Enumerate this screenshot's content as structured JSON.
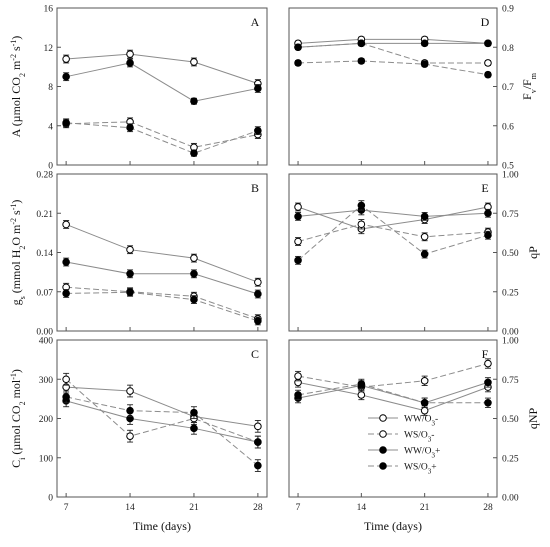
{
  "chart_data": [
    {
      "id": "A",
      "type": "line",
      "panel_label": "A",
      "ylabel": "A (µmol CO₂ m⁻² s⁻¹)",
      "ylabel_parts": [
        [
          "A (µmol CO",
          ""
        ],
        [
          "2",
          "sub"
        ],
        [
          " m",
          ""
        ],
        [
          "-2",
          "sup"
        ],
        [
          " s",
          ""
        ],
        [
          "-1",
          "sup"
        ],
        [
          ")",
          ""
        ]
      ],
      "xlabel": "",
      "x": [
        7,
        14,
        21,
        28
      ],
      "xlim": [
        6,
        29
      ],
      "ylim": [
        0,
        16
      ],
      "yticks": [
        "0",
        "4",
        "8",
        "12",
        "16"
      ],
      "series": [
        {
          "name": "WW/O3-",
          "values": [
            10.8,
            11.3,
            10.5,
            8.3
          ],
          "err": [
            0.4,
            0.4,
            0.4,
            0.4
          ]
        },
        {
          "name": "WS/O3-",
          "values": [
            4.2,
            4.4,
            1.8,
            3.1
          ],
          "err": [
            0.4,
            0.4,
            0.4,
            0.4
          ]
        },
        {
          "name": "WW/O3+",
          "values": [
            9.0,
            10.4,
            6.5,
            7.8
          ],
          "err": [
            0.4,
            0.4,
            0.3,
            0.4
          ]
        },
        {
          "name": "WS/O3+",
          "values": [
            4.3,
            3.8,
            1.2,
            3.5
          ],
          "err": [
            0.4,
            0.4,
            0.3,
            0.4
          ]
        }
      ]
    },
    {
      "id": "D",
      "type": "line",
      "panel_label": "D",
      "ylabel": "Fv/Fm",
      "ylabel_parts": [
        [
          "F",
          ""
        ],
        [
          "v",
          "sub"
        ],
        [
          "/F",
          ""
        ],
        [
          "m",
          "sub"
        ]
      ],
      "xlabel": "",
      "x": [
        7,
        14,
        21,
        28
      ],
      "xlim": [
        6,
        29
      ],
      "ylim": [
        0.5,
        0.9
      ],
      "yticks": [
        "0.5",
        "0.6",
        "0.7",
        "0.8",
        "0.9"
      ],
      "series": [
        {
          "name": "WW/O3-",
          "values": [
            0.81,
            0.82,
            0.82,
            0.81
          ],
          "err": [
            0.006,
            0.006,
            0.006,
            0.006
          ]
        },
        {
          "name": "WS/O3-",
          "values": [
            0.8,
            0.81,
            0.76,
            0.76
          ],
          "err": [
            0.006,
            0.006,
            0.006,
            0.006
          ]
        },
        {
          "name": "WW/O3+",
          "values": [
            0.8,
            0.81,
            0.81,
            0.81
          ],
          "err": [
            0.006,
            0.006,
            0.006,
            0.006
          ]
        },
        {
          "name": "WS/O3+",
          "values": [
            0.76,
            0.765,
            0.757,
            0.73
          ],
          "err": [
            0.006,
            0.006,
            0.006,
            0.006
          ]
        }
      ]
    },
    {
      "id": "B",
      "type": "line",
      "panel_label": "B",
      "ylabel": "gs (mmol H₂O m⁻² s⁻¹)",
      "ylabel_parts": [
        [
          "g",
          ""
        ],
        [
          "s",
          "sub"
        ],
        [
          " (mmol H",
          ""
        ],
        [
          "2",
          "sub"
        ],
        [
          "O m",
          ""
        ],
        [
          "-2",
          "sup"
        ],
        [
          " s",
          ""
        ],
        [
          "-1",
          "sup"
        ],
        [
          ")",
          ""
        ]
      ],
      "xlabel": "",
      "x": [
        7,
        14,
        21,
        28
      ],
      "xlim": [
        6,
        29
      ],
      "ylim": [
        0,
        0.28
      ],
      "yticks": [
        "0.00",
        "0.07",
        "0.14",
        "0.21",
        "0.28"
      ],
      "series": [
        {
          "name": "WW/O3-",
          "values": [
            0.19,
            0.145,
            0.13,
            0.087
          ],
          "err": [
            0.007,
            0.007,
            0.007,
            0.007
          ]
        },
        {
          "name": "WS/O3-",
          "values": [
            0.078,
            0.07,
            0.062,
            0.022
          ],
          "err": [
            0.007,
            0.007,
            0.007,
            0.007
          ]
        },
        {
          "name": "WW/O3+",
          "values": [
            0.123,
            0.102,
            0.102,
            0.066
          ],
          "err": [
            0.007,
            0.007,
            0.007,
            0.007
          ]
        },
        {
          "name": "WS/O3+",
          "values": [
            0.067,
            0.069,
            0.056,
            0.018
          ],
          "err": [
            0.007,
            0.007,
            0.007,
            0.007
          ]
        }
      ]
    },
    {
      "id": "E",
      "type": "line",
      "panel_label": "E",
      "ylabel": "qP",
      "ylabel_parts": [
        [
          "qP",
          ""
        ]
      ],
      "xlabel": "",
      "x": [
        7,
        14,
        21,
        28
      ],
      "xlim": [
        6,
        29
      ],
      "ylim": [
        0,
        1
      ],
      "yticks": [
        "0.00",
        "0.25",
        "0.50",
        "0.75",
        "1.00"
      ],
      "series": [
        {
          "name": "WW/O3-",
          "values": [
            0.79,
            0.65,
            0.71,
            0.79
          ],
          "err": [
            0.025,
            0.03,
            0.025,
            0.025
          ]
        },
        {
          "name": "WS/O3-",
          "values": [
            0.57,
            0.68,
            0.6,
            0.63
          ],
          "err": [
            0.025,
            0.03,
            0.025,
            0.025
          ]
        },
        {
          "name": "WW/O3+",
          "values": [
            0.73,
            0.77,
            0.73,
            0.75
          ],
          "err": [
            0.025,
            0.03,
            0.025,
            0.025
          ]
        },
        {
          "name": "WS/O3+",
          "values": [
            0.45,
            0.8,
            0.49,
            0.61
          ],
          "err": [
            0.025,
            0.03,
            0.025,
            0.025
          ]
        }
      ]
    },
    {
      "id": "C",
      "type": "line",
      "panel_label": "C",
      "ylabel": "Ci (µmol CO₂ mol⁻¹)",
      "ylabel_parts": [
        [
          "C",
          ""
        ],
        [
          "i",
          "sub"
        ],
        [
          " (µmol CO",
          ""
        ],
        [
          "2",
          "sub"
        ],
        [
          " mol",
          ""
        ],
        [
          "-1",
          "sup"
        ],
        [
          ")",
          ""
        ]
      ],
      "xlabel": "Time (days)",
      "x": [
        7,
        14,
        21,
        28
      ],
      "xlim": [
        6,
        29
      ],
      "ylim": [
        0,
        400
      ],
      "yticks": [
        "0",
        "100",
        "200",
        "300",
        "400"
      ],
      "xticks": [
        "7",
        "14",
        "21",
        "28"
      ],
      "series": [
        {
          "name": "WW/O3-",
          "values": [
            280,
            270,
            205,
            180
          ],
          "err": [
            15,
            15,
            15,
            15
          ]
        },
        {
          "name": "WS/O3-",
          "values": [
            300,
            155,
            200,
            140
          ],
          "err": [
            15,
            15,
            15,
            15
          ]
        },
        {
          "name": "WW/O3+",
          "values": [
            245,
            200,
            175,
            140
          ],
          "err": [
            15,
            15,
            15,
            15
          ]
        },
        {
          "name": "WS/O3+",
          "values": [
            255,
            220,
            215,
            80
          ],
          "err": [
            15,
            15,
            15,
            15
          ]
        }
      ]
    },
    {
      "id": "F",
      "type": "line",
      "panel_label": "F",
      "ylabel": "qNP",
      "ylabel_parts": [
        [
          "qNP",
          ""
        ]
      ],
      "xlabel": "Time (days)",
      "x": [
        7,
        14,
        21,
        28
      ],
      "xlim": [
        6,
        29
      ],
      "ylim": [
        0,
        1
      ],
      "yticks": [
        "0.00",
        "0.25",
        "0.50",
        "0.75",
        "1.00"
      ],
      "xticks": [
        "7",
        "14",
        "21",
        "28"
      ],
      "series": [
        {
          "name": "WW/O3-",
          "values": [
            0.73,
            0.65,
            0.55,
            0.7
          ],
          "err": [
            0.03,
            0.03,
            0.03,
            0.03
          ]
        },
        {
          "name": "WS/O3-",
          "values": [
            0.77,
            0.7,
            0.74,
            0.85
          ],
          "err": [
            0.03,
            0.03,
            0.03,
            0.03
          ]
        },
        {
          "name": "WW/O3+",
          "values": [
            0.63,
            0.71,
            0.6,
            0.73
          ],
          "err": [
            0.03,
            0.03,
            0.03,
            0.03
          ]
        },
        {
          "name": "WS/O3+",
          "values": [
            0.65,
            0.72,
            0.6,
            0.6
          ],
          "err": [
            0.03,
            0.03,
            0.03,
            0.03
          ]
        }
      ]
    }
  ],
  "legend": {
    "placement": "bottom-right of panel F",
    "entries": [
      {
        "label": "WW/O3-",
        "dash": "solid",
        "marker": "open-circle"
      },
      {
        "label": "WS/O3-",
        "dash": "dashed",
        "marker": "open-circle"
      },
      {
        "label": "WW/O3+",
        "dash": "solid",
        "marker": "filled-circle"
      },
      {
        "label": "WS/O3+",
        "dash": "dashed",
        "marker": "filled-circle"
      }
    ]
  },
  "styles": {
    "WW/O3-": {
      "dash": "solid",
      "fill": "#ffffff",
      "line_color": "#8c8c8c"
    },
    "WS/O3-": {
      "dash": "dashed",
      "fill": "#ffffff",
      "line_color": "#8c8c8c"
    },
    "WW/O3+": {
      "dash": "solid",
      "fill": "#000000",
      "line_color": "#8c8c8c"
    },
    "WS/O3+": {
      "dash": "dashed",
      "fill": "#000000",
      "line_color": "#8c8c8c"
    }
  }
}
